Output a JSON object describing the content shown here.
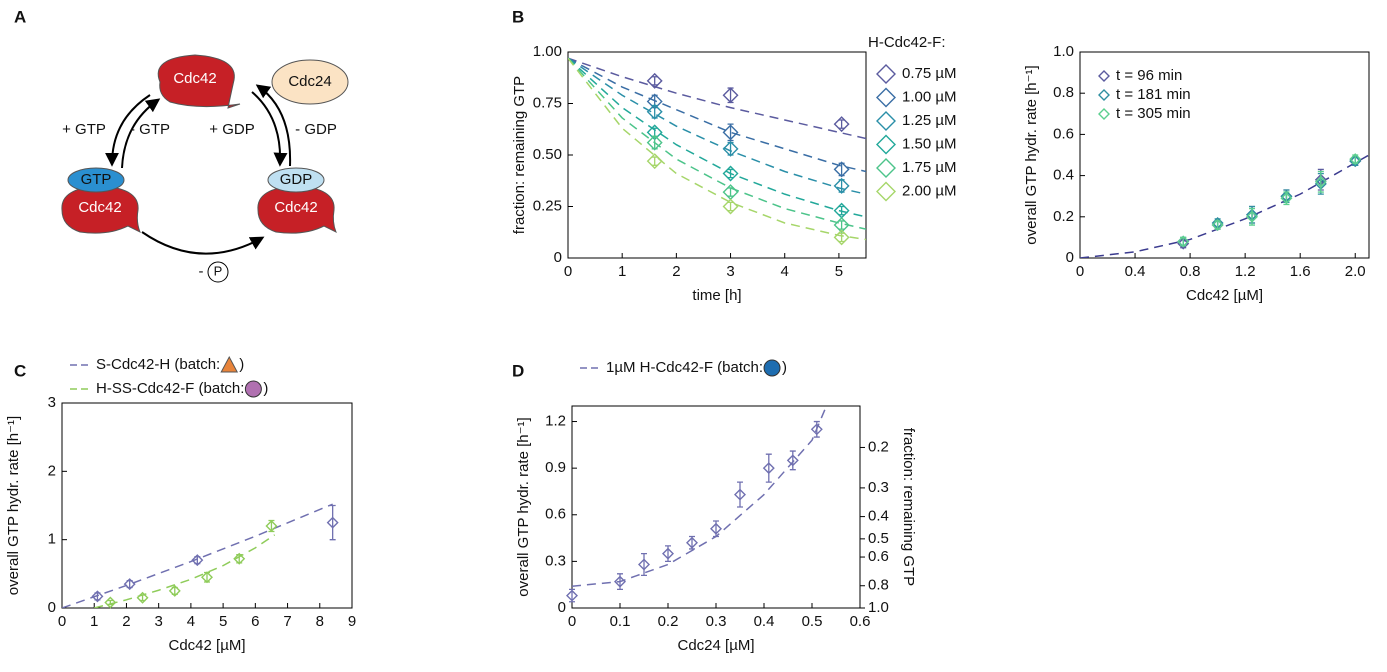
{
  "panels": [
    "A",
    "B",
    "C",
    "D"
  ],
  "diagram": {
    "top_protein": "Cdc42",
    "gef": "Cdc24",
    "plus_gtp": "+ GTP",
    "minus_gtp": "- GTP",
    "plus_gdp": "+ GDP",
    "minus_gdp": "- GDP",
    "gtp": "GTP",
    "left_protein": "Cdc42",
    "gdp": "GDP",
    "right_protein": "Cdc42",
    "minus": "-",
    "phosphate": "P"
  },
  "chart_data": [
    {
      "type": "scatter",
      "xlabel": "time [h]",
      "ylabel": "fraction: remaining GTP",
      "legend_title": "H-Cdc42-F:",
      "xlim": [
        0,
        5.5
      ],
      "xticks": [
        0,
        1,
        2,
        3,
        4,
        5
      ],
      "ylim": [
        0,
        1
      ],
      "yticks": [
        0,
        {
          "value": 0.25,
          "label": "0.25"
        },
        {
          "value": 0.5,
          "label": "0.50"
        },
        {
          "value": 0.75,
          "label": "0.75"
        },
        {
          "value": 1,
          "label": "1.00"
        }
      ],
      "series": [
        {
          "name": "0.75 µM",
          "color": "#5b5b9f",
          "x": [
            1.6,
            3.0,
            5.05
          ],
          "values": [
            0.86,
            0.79,
            0.65
          ],
          "errors": [
            0.02,
            0.035,
            0.02
          ]
        },
        {
          "name": "1.00 µM",
          "color": "#3a6ea5",
          "x": [
            1.6,
            3.0,
            5.05
          ],
          "values": [
            0.76,
            0.61,
            0.43
          ],
          "errors": [
            0.03,
            0.04,
            0.03
          ]
        },
        {
          "name": "1.25 µM",
          "color": "#2a8fa8",
          "x": [
            1.6,
            3.0,
            5.05
          ],
          "values": [
            0.71,
            0.53,
            0.35
          ],
          "errors": [
            0.03,
            0.03,
            0.03
          ]
        },
        {
          "name": "1.50 µM",
          "color": "#22a89a",
          "x": [
            1.6,
            3.0,
            5.05
          ],
          "values": [
            0.61,
            0.41,
            0.23
          ],
          "errors": [
            0.02,
            0.02,
            0.02
          ]
        },
        {
          "name": "1.75 µM",
          "color": "#4cc48a",
          "x": [
            1.6,
            3.0,
            5.05
          ],
          "values": [
            0.56,
            0.32,
            0.16
          ],
          "errors": [
            0.03,
            0.02,
            0.02
          ]
        },
        {
          "name": "2.00 µM",
          "color": "#a6d66a",
          "x": [
            1.6,
            3.0,
            5.05
          ],
          "values": [
            0.47,
            0.25,
            0.1
          ],
          "errors": [
            0.02,
            0.02,
            0.02
          ]
        }
      ],
      "fits": [
        {
          "color": "#5b5b9f",
          "x": [
            0,
            1,
            2,
            3,
            4,
            5,
            5.5
          ],
          "values": [
            0.97,
            0.88,
            0.8,
            0.73,
            0.67,
            0.61,
            0.58
          ]
        },
        {
          "color": "#3a6ea5",
          "x": [
            0,
            1,
            2,
            3,
            4,
            5,
            5.5
          ],
          "values": [
            0.97,
            0.83,
            0.72,
            0.61,
            0.53,
            0.45,
            0.42
          ]
        },
        {
          "color": "#2a8fa8",
          "x": [
            0,
            1,
            2,
            3,
            4,
            5,
            5.5
          ],
          "values": [
            0.97,
            0.79,
            0.64,
            0.52,
            0.42,
            0.34,
            0.31
          ]
        },
        {
          "color": "#22a89a",
          "x": [
            0,
            1,
            2,
            3,
            4,
            5,
            5.5
          ],
          "values": [
            0.97,
            0.73,
            0.55,
            0.41,
            0.31,
            0.23,
            0.2
          ]
        },
        {
          "color": "#4cc48a",
          "x": [
            0,
            1,
            2,
            3,
            4,
            5,
            5.5
          ],
          "values": [
            0.97,
            0.68,
            0.48,
            0.34,
            0.24,
            0.17,
            0.14
          ]
        },
        {
          "color": "#a6d66a",
          "x": [
            0,
            1,
            2,
            3,
            4,
            5,
            5.5
          ],
          "values": [
            0.97,
            0.63,
            0.41,
            0.27,
            0.17,
            0.11,
            0.09
          ]
        }
      ]
    },
    {
      "type": "scatter",
      "xlabel": "Cdc42 [µM]",
      "ylabel": "overall GTP hydr. rate [h⁻¹]",
      "xlim": [
        0,
        2.1
      ],
      "xticks": [
        0,
        0.4,
        0.8,
        1.2,
        1.6,
        {
          "value": 2,
          "label": "2.0"
        }
      ],
      "ylim": [
        0,
        1
      ],
      "yticks": [
        0,
        0.2,
        0.4,
        0.6,
        0.8,
        {
          "value": 1,
          "label": "1.0"
        }
      ],
      "series": [
        {
          "name": "t = 96 min",
          "color": "#5b5b9f",
          "x": [
            0.75,
            1.0,
            1.25,
            1.5,
            1.75,
            2.0
          ],
          "values": [
            0.07,
            0.16,
            0.21,
            0.3,
            0.38,
            0.47
          ],
          "errors": [
            0.02,
            0.02,
            0.04,
            0.03,
            0.05,
            0.02
          ]
        },
        {
          "name": "t = 181 min",
          "color": "#2f8fa0",
          "x": [
            0.75,
            1.0,
            1.25,
            1.5,
            1.75,
            2.0
          ],
          "values": [
            0.08,
            0.17,
            0.21,
            0.3,
            0.36,
            0.47
          ],
          "errors": [
            0.02,
            0.02,
            0.04,
            0.03,
            0.05,
            0.02
          ]
        },
        {
          "name": "t = 305 min",
          "color": "#5ccf8f",
          "x": [
            0.75,
            1.0,
            1.25,
            1.5,
            1.75,
            2.0
          ],
          "values": [
            0.08,
            0.16,
            0.2,
            0.29,
            0.37,
            0.48
          ],
          "errors": [
            0.02,
            0.02,
            0.04,
            0.03,
            0.05,
            0.02
          ]
        }
      ],
      "fits": [
        {
          "color": "#3b3b8f",
          "x": [
            0,
            0.4,
            0.8,
            1.2,
            1.6,
            2.1
          ],
          "values": [
            0,
            0.03,
            0.09,
            0.19,
            0.31,
            0.5
          ]
        }
      ]
    },
    {
      "type": "scatter",
      "xlabel": "Cdc42 [µM]",
      "ylabel": "overall GTP hydr. rate [h⁻¹]",
      "legend_suffix": ")",
      "xlim": [
        0,
        9
      ],
      "xticks": [
        0,
        1,
        2,
        3,
        4,
        5,
        6,
        7,
        8,
        9
      ],
      "ylim": [
        0,
        3
      ],
      "yticks": [
        0,
        1,
        2,
        3
      ],
      "series": [
        {
          "name": "S-Cdc42-H (batch:",
          "color": "#7070b0",
          "x": [
            1.1,
            2.1,
            4.2,
            8.4
          ],
          "values": [
            0.17,
            0.35,
            0.7,
            1.25
          ],
          "errors": [
            0.05,
            0.05,
            0.05,
            0.25
          ]
        },
        {
          "name": "H-SS-Cdc42-F (batch:",
          "color": "#8fcc5a",
          "x": [
            1.5,
            2.5,
            3.5,
            4.5,
            5.5,
            6.5
          ],
          "values": [
            0.08,
            0.15,
            0.25,
            0.45,
            0.72,
            1.2
          ],
          "errors": [
            0.03,
            0.04,
            0.05,
            0.07,
            0.06,
            0.08
          ]
        }
      ],
      "fits": [
        {
          "color": "#7070b0",
          "x": [
            0,
            2,
            4,
            6,
            8.4
          ],
          "values": [
            0,
            0.33,
            0.68,
            1.05,
            1.52
          ]
        },
        {
          "color": "#8fcc5a",
          "x": [
            1,
            2,
            3,
            4,
            5,
            6,
            6.6
          ],
          "values": [
            0,
            0.12,
            0.26,
            0.42,
            0.62,
            0.88,
            1.07
          ]
        }
      ]
    },
    {
      "type": "scatter",
      "xlabel": "Cdc24 [µM]",
      "ylabel": "overall GTP hydr. rate [h⁻¹]",
      "y2label": "fraction: remaining GTP",
      "legend_suffix": ")",
      "xlim": [
        0,
        0.6
      ],
      "xticks": [
        0,
        0.1,
        0.2,
        0.3,
        0.4,
        0.5,
        0.6
      ],
      "ylim": [
        0,
        1.3
      ],
      "yticks": [
        0,
        0.3,
        0.6,
        0.9,
        1.2
      ],
      "y2scale": "log",
      "y2lim": [
        1,
        0.132
      ],
      "y2ticks": [
        {
          "value": 1,
          "label": "1.0"
        },
        0.8,
        0.6,
        0.5,
        0.4,
        0.3,
        0.2
      ],
      "series": [
        {
          "name": "1µM H-Cdc42-F (batch:",
          "color": "#7070b0",
          "x": [
            0,
            0.1,
            0.15,
            0.2,
            0.25,
            0.3,
            0.35,
            0.41,
            0.46,
            0.51
          ],
          "values": [
            0.08,
            0.17,
            0.28,
            0.35,
            0.42,
            0.51,
            0.73,
            0.9,
            0.95,
            1.15
          ],
          "errors": [
            0.04,
            0.05,
            0.07,
            0.05,
            0.04,
            0.05,
            0.08,
            0.09,
            0.06,
            0.05
          ]
        }
      ],
      "fits": [
        {
          "color": "#7070b0",
          "x": [
            0,
            0.1,
            0.2,
            0.3,
            0.4,
            0.5,
            0.53
          ],
          "values": [
            0.14,
            0.17,
            0.28,
            0.46,
            0.73,
            1.08,
            1.3
          ]
        }
      ]
    }
  ]
}
